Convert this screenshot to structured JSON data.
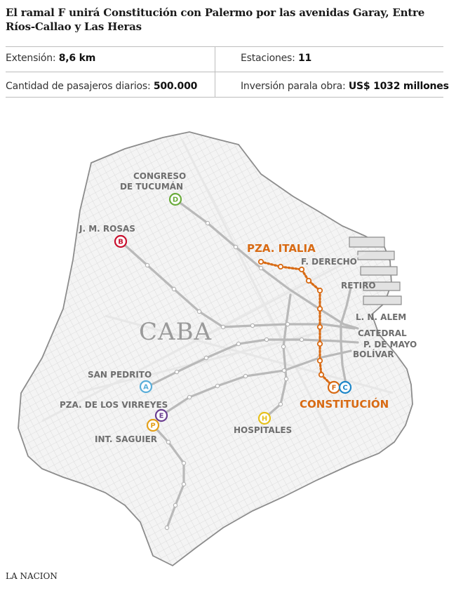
{
  "title": "El ramal F unirá Constitución con Palermo por las avenidas Garay, Entre Ríos-Callao y Las Heras",
  "stats": {
    "extension": {
      "label": "Extensión:",
      "value": "8,6 km"
    },
    "stations": {
      "label": "Estaciones:",
      "value": "11"
    },
    "passengers": {
      "label": "Cantidad de pasajeros diarios:",
      "value": "500.000"
    },
    "investment": {
      "label": "Inversión parala obra:",
      "value": "US$ 1032 millones"
    }
  },
  "map": {
    "city_label": "CABA",
    "new_line": {
      "letter": "F",
      "color": "#d86a13",
      "from": "CONSTITUCIÓN",
      "via": "PZA. ITALIA"
    },
    "stations": {
      "congreso": "CONGRESO",
      "tucuman": "DE TUCUMÁN",
      "jmrosas": "J. M. ROSAS",
      "pza_italia": "PZA. ITALIA",
      "fderecho": "F. DERECHO",
      "retiro": "RETIRO",
      "lnalem": "L. N. ALEM",
      "catedral": "CATEDRAL",
      "pdemayo": "P. DE MAYO",
      "bolivar": "BOLÍVAR",
      "sanpedrito": "SAN PEDRITO",
      "virreyes": "PZA. DE LOS VIRREYES",
      "saguier": "INT. SAGUIER",
      "hospitales": "HOSPITALES",
      "constitucion": "CONSTITUCIÓN"
    },
    "badges": {
      "D": {
        "letter": "D",
        "color": "#6aab3b"
      },
      "B": {
        "letter": "B",
        "color": "#c8102e"
      },
      "A": {
        "letter": "A",
        "color": "#5aaed9"
      },
      "E": {
        "letter": "E",
        "color": "#6b3f91"
      },
      "P": {
        "letter": "P",
        "color": "#e3a01b"
      },
      "H": {
        "letter": "H",
        "color": "#e6c01c"
      },
      "F": {
        "letter": "F",
        "color": "#d86a13"
      },
      "C": {
        "letter": "C",
        "color": "#1d86c8"
      }
    }
  },
  "credit": "LA NACION"
}
